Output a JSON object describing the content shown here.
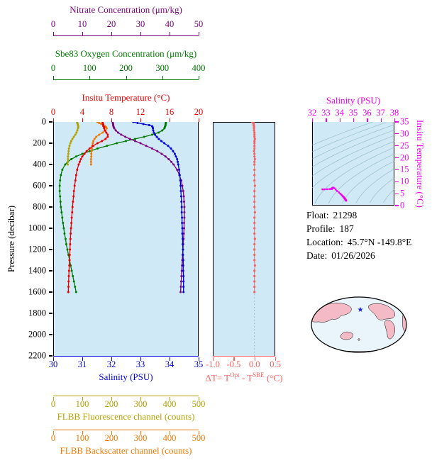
{
  "colors": {
    "plot_bg": "#cfe9f6",
    "contour": "#8fb6c6",
    "map_ocean": "#e9f5fa",
    "map_land": "#f4bac6",
    "map_border": "#000000",
    "star": "#2222cc"
  },
  "axes": {
    "nitrate": {
      "title": "Nitrate Concentration (μm/kg)",
      "min": 0,
      "max": 50,
      "ticks": [
        0,
        10,
        20,
        30,
        40,
        50
      ],
      "color": "#7d007d"
    },
    "oxygen": {
      "title": "Sbe83 Oxygen Concentration (μm/kg)",
      "min": 0,
      "max": 400,
      "ticks": [
        0,
        100,
        200,
        300,
        400
      ],
      "color": "#007a00"
    },
    "temperature": {
      "title": "Insitu Temperature (°C)",
      "min": 0,
      "max": 20,
      "ticks": [
        0,
        4,
        8,
        12,
        16,
        20
      ],
      "color": "#e60000"
    },
    "pressure": {
      "title": "Pressure (decibar)",
      "min": 0,
      "max": 2200,
      "ticks": [
        0,
        200,
        400,
        600,
        800,
        1000,
        1200,
        1400,
        1600,
        1800,
        2000,
        2200
      ],
      "color": "#000000"
    },
    "salinity": {
      "title": "Salinity (PSU)",
      "min": 30,
      "max": 35,
      "ticks": [
        30,
        31,
        32,
        33,
        34,
        35
      ],
      "color": "#0000dd"
    },
    "fluorescence": {
      "title": "FLBB Fluorescence channel (counts)",
      "min": 0,
      "max": 500,
      "ticks": [
        0,
        100,
        200,
        300,
        400,
        500
      ],
      "color": "#b4a000"
    },
    "backscatter": {
      "title": "FLBB Backscatter channel (counts)",
      "min": 0,
      "max": 500,
      "ticks": [
        0,
        100,
        200,
        300,
        400,
        500
      ],
      "color": "#f07800"
    },
    "delta_t": {
      "title_parts": [
        "ΔT= T",
        "Opt",
        " - T",
        "SBE",
        " (°C)"
      ],
      "min": -1.0,
      "max": 0.5,
      "ticks": [
        -1,
        -0.5,
        0,
        0.5
      ],
      "tick_labels": [
        "-1.0",
        "-0.5",
        "0.0",
        "0.5"
      ],
      "color": "#f96060"
    },
    "ts_salinity": {
      "title": "Salinity (PSU)",
      "min": 32,
      "max": 38,
      "ticks": [
        32,
        33,
        34,
        35,
        36,
        37,
        38
      ],
      "color": "#ee00ee"
    },
    "ts_temperature": {
      "title": "Insitu Temperature (°C)",
      "min": 0,
      "max": 35,
      "ticks": [
        0,
        5,
        10,
        15,
        20,
        25,
        30,
        35
      ],
      "color": "#ee00ee"
    }
  },
  "info": {
    "rows": [
      {
        "label": "Float:",
        "value": "21298"
      },
      {
        "label": "Profile:",
        "value": "187"
      },
      {
        "label": "Location:",
        "value": "45.7°N -149.8°E"
      },
      {
        "label": "Date:",
        "value": "01/26/2026"
      }
    ]
  },
  "map": {
    "star_icon": "★",
    "star_x": 72,
    "star_y": 24
  },
  "chart_data": [
    {
      "name": "profiles",
      "type": "line",
      "ylabel": "Pressure (decibar)",
      "ylim": [
        0,
        2200
      ],
      "y_inverted": true,
      "pressure": [
        0,
        10,
        20,
        30,
        40,
        50,
        60,
        80,
        100,
        120,
        140,
        160,
        180,
        200,
        225,
        250,
        275,
        300,
        325,
        350,
        375,
        400,
        450,
        500,
        550,
        600,
        650,
        700,
        750,
        800,
        850,
        900,
        950,
        1000,
        1050,
        1100,
        1150,
        1200,
        1250,
        1300,
        1350,
        1400,
        1450,
        1500,
        1550,
        1600
      ],
      "series": [
        {
          "key": "oxygen",
          "name": "Sbe83 Oxygen Concentration (μm/kg)",
          "color": "#007a00",
          "xlim": [
            0,
            400
          ],
          "values": [
            310,
            310,
            309,
            309,
            308,
            307,
            306,
            300,
            290,
            272,
            250,
            225,
            200,
            175,
            148,
            122,
            100,
            80,
            63,
            50,
            40,
            33,
            25,
            21,
            19,
            18,
            18,
            19,
            20,
            21,
            23,
            25,
            27,
            29,
            31,
            34,
            36,
            39,
            42,
            45,
            48,
            51,
            54,
            57,
            60,
            63
          ]
        },
        {
          "key": "nitrate",
          "name": "Nitrate Concentration (μm/kg)",
          "color": "#7d007d",
          "xlim": [
            0,
            50
          ],
          "values": [
            20.5,
            20.5,
            20.6,
            20.6,
            20.7,
            20.8,
            21.0,
            21.5,
            22.3,
            23.4,
            24.8,
            26.4,
            28.2,
            30.0,
            32.0,
            34.0,
            35.8,
            37.3,
            38.6,
            39.7,
            40.6,
            41.4,
            42.6,
            43.4,
            44.0,
            44.4,
            44.7,
            44.9,
            45.0,
            45.1,
            45.1,
            45.1,
            45.0,
            45.0,
            44.9,
            44.8,
            44.7,
            44.6,
            44.5,
            44.4,
            44.3,
            44.2,
            44.1,
            44.0,
            43.9,
            43.8
          ]
        },
        {
          "key": "fluorescence",
          "name": "FLBB Fluorescence channel (counts)",
          "color": "#b4a000",
          "xlim": [
            0,
            500
          ],
          "values": [
            82,
            83,
            84,
            85,
            86,
            86,
            85,
            83,
            80,
            76,
            71,
            66,
            62,
            59,
            56,
            54,
            53,
            52,
            51,
            51,
            50,
            50,
            null,
            null,
            null,
            null,
            null,
            null,
            null,
            null,
            null,
            null,
            null,
            null,
            null,
            null,
            null,
            null,
            null,
            null,
            null,
            null,
            null,
            null,
            null,
            null
          ]
        },
        {
          "key": "backscatter",
          "name": "FLBB Backscatter channel (counts)",
          "color": "#f07800",
          "xlim": [
            0,
            500
          ],
          "values": [
            152,
            158,
            165,
            172,
            178,
            182,
            184,
            180,
            170,
            158,
            148,
            142,
            138,
            136,
            134,
            133,
            132,
            131,
            131,
            130,
            130,
            130,
            null,
            null,
            null,
            null,
            null,
            null,
            null,
            null,
            null,
            null,
            null,
            null,
            null,
            null,
            null,
            null,
            null,
            null,
            null,
            null,
            null,
            null,
            null,
            null
          ]
        },
        {
          "key": "temperature",
          "name": "Insitu Temperature (°C)",
          "color": "#e60000",
          "xlim": [
            0,
            20
          ],
          "values": [
            6.8,
            6.8,
            6.85,
            6.9,
            6.9,
            7.0,
            7.0,
            7.1,
            7.3,
            7.5,
            7.5,
            7.2,
            6.7,
            6.1,
            5.5,
            5.0,
            4.6,
            4.3,
            4.0,
            3.8,
            3.65,
            3.5,
            3.3,
            3.15,
            3.05,
            2.95,
            2.85,
            2.8,
            2.72,
            2.65,
            2.6,
            2.55,
            2.5,
            2.45,
            2.4,
            2.37,
            2.33,
            2.3,
            2.27,
            2.24,
            2.21,
            2.18,
            2.15,
            2.12,
            2.1,
            2.08
          ]
        },
        {
          "key": "salinity",
          "name": "Salinity (PSU)",
          "color": "#0000dd",
          "xlim": [
            30,
            35
          ],
          "values": [
            32.75,
            32.9,
            33.1,
            33.3,
            33.4,
            33.42,
            33.43,
            33.44,
            33.46,
            33.5,
            33.56,
            33.63,
            33.72,
            33.82,
            33.95,
            34.05,
            34.12,
            34.18,
            34.22,
            34.26,
            34.28,
            34.3,
            34.33,
            34.35,
            34.37,
            34.38,
            34.39,
            34.4,
            34.41,
            34.42,
            34.42,
            34.43,
            34.43,
            34.44,
            34.44,
            34.45,
            34.45,
            34.46,
            34.46,
            34.47,
            34.47,
            34.47,
            34.48,
            34.48,
            34.48,
            34.48
          ]
        }
      ]
    },
    {
      "name": "delta_t",
      "type": "scatter",
      "xlabel": "ΔT= TOpt - TSBE (°C)",
      "xlim": [
        -1.0,
        0.5
      ],
      "ylim": [
        0,
        2200
      ],
      "color": "#f96060",
      "values": [
        -0.05,
        -0.03,
        -0.02,
        -0.02,
        -0.01,
        -0.01,
        -0.01,
        -0.01,
        0,
        0,
        0,
        0.01,
        0,
        0,
        0,
        0,
        -0.01,
        0,
        0,
        0.01,
        0,
        0,
        0,
        0,
        0,
        0.01,
        0,
        0,
        0,
        0,
        0.01,
        0,
        0,
        0,
        0,
        0.01,
        0,
        0,
        0,
        0,
        0.01,
        0,
        0,
        0,
        0,
        0
      ]
    },
    {
      "name": "ts_diagram",
      "type": "line",
      "xlabel": "Salinity (PSU)",
      "ylabel": "Insitu Temperature (°C)",
      "xlim": [
        32,
        38
      ],
      "ylim": [
        0,
        35
      ],
      "color": "#ee00ee",
      "x_from": "salinity",
      "y_from": "temperature",
      "isopycnal_levels": [
        21,
        21.8,
        22.6,
        23.4,
        24.2,
        25,
        25.8,
        26.6,
        27.4,
        28.2,
        29,
        29.8,
        30.6
      ]
    }
  ]
}
